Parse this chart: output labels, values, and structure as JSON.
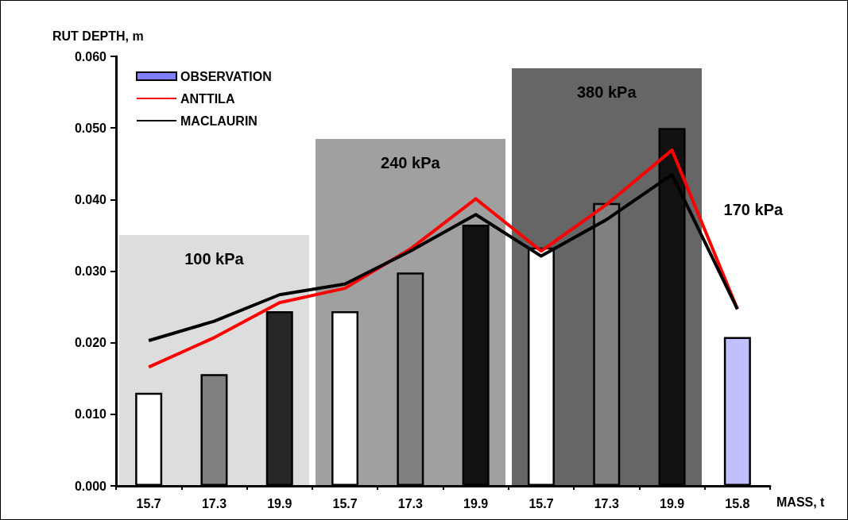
{
  "chart_data": {
    "type": "bar",
    "ylabel": "RUT DEPTH, m",
    "xlabel": "MASS, t",
    "categories": [
      "15.7",
      "17.3",
      "19.9",
      "15.7",
      "17.3",
      "19.9",
      "15.7",
      "17.3",
      "19.9",
      "15.8"
    ],
    "series": [
      {
        "name": "OBSERVATION",
        "color": "#8080ff",
        "colors": [
          "#ffffff",
          "#808080",
          "#262626",
          "#ffffff",
          "#808080",
          "#111111",
          "#ffffff",
          "#808080",
          "#111111",
          "#c0c0ff"
        ],
        "values": [
          0.013,
          0.0156,
          0.0244,
          0.0244,
          0.0298,
          0.0365,
          0.0333,
          0.0395,
          0.05,
          0.0208
        ]
      },
      {
        "name": "ANTTILA",
        "type": "line",
        "color": "#ff0000",
        "values": [
          0.0166,
          0.0207,
          0.0256,
          0.0276,
          0.0331,
          0.0401,
          0.0328,
          0.0393,
          0.0469,
          0.0247
        ]
      },
      {
        "name": "MACLAURIN",
        "type": "line",
        "color": "#000000",
        "values": [
          0.0203,
          0.023,
          0.0267,
          0.0282,
          0.0328,
          0.0379,
          0.0321,
          0.0372,
          0.0435,
          0.0247
        ]
      }
    ],
    "ylim": [
      0,
      0.06
    ],
    "yticks": [
      {
        "value": 0,
        "label": "0.000"
      },
      {
        "value": 0.01,
        "label": "0.010"
      },
      {
        "value": 0.02,
        "label": "0.020"
      },
      {
        "value": 0.03,
        "label": "0.030"
      },
      {
        "value": 0.04,
        "label": "0.040"
      },
      {
        "value": 0.05,
        "label": "0.050"
      },
      {
        "value": 0.06,
        "label": "0.060"
      }
    ],
    "annotations": [
      "100 kPa",
      "240 kPa",
      "380 kPa",
      "170 kPa"
    ],
    "legend": "top left"
  }
}
